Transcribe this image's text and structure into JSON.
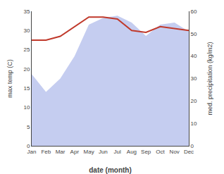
{
  "chart_data": {
    "type": "line",
    "categories": [
      "Jan",
      "Feb",
      "Mar",
      "Apr",
      "May",
      "Jun",
      "Jul",
      "Aug",
      "Sep",
      "Oct",
      "Nov",
      "Dec"
    ],
    "xlabel": "date (month)",
    "ylabel": "max temp (C)",
    "y2label": "med. precipitation (kg/m2)",
    "series": [
      {
        "type": "area",
        "axis": "y2",
        "color": "#c5cdf0",
        "values": [
          32,
          24,
          30,
          40,
          54,
          57,
          58,
          55,
          49,
          54,
          55,
          51
        ]
      },
      {
        "type": "line",
        "color": "#c0392b",
        "values": [
          27.5,
          27.5,
          28.5,
          31.0,
          33.5,
          33.5,
          33.0,
          30.0,
          29.5,
          31.0,
          30.5,
          30.0
        ]
      }
    ],
    "ylim": [
      0,
      35
    ],
    "yticks": [
      0,
      5,
      10,
      15,
      20,
      25,
      30,
      35
    ],
    "y2lim": [
      0,
      60
    ],
    "y2ticks": [
      0,
      10,
      20,
      30,
      40,
      50,
      60
    ],
    "grid": false
  }
}
